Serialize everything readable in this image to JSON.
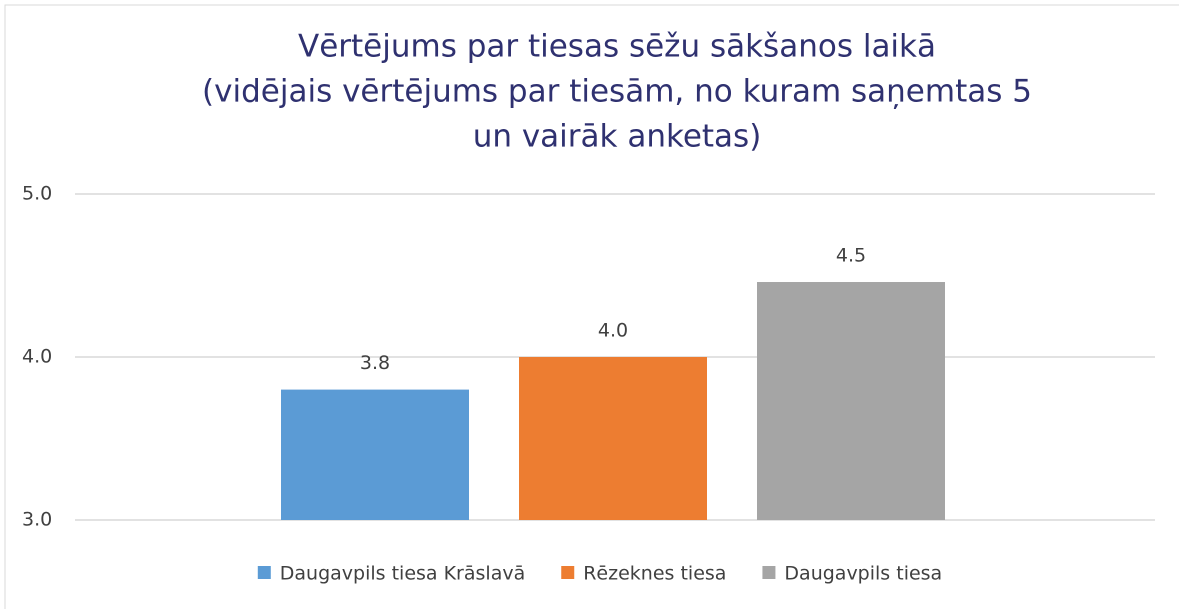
{
  "chart_data": {
    "type": "bar",
    "title": [
      "Vērtējums par tiesas sēžu sākšanos laikā",
      "(vidējais vērtējums par tiesām, no kuram saņemtas 5",
      "un vairāk anketas)"
    ],
    "categories": [
      null
    ],
    "series": [
      {
        "name": "Daugavpils tiesa Krāslavā",
        "color": "#5b9bd5",
        "values": [
          3.8
        ],
        "value_labels": [
          "3.8"
        ]
      },
      {
        "name": "Rēzeknes tiesa",
        "color": "#ed7d31",
        "values": [
          4.0
        ],
        "value_labels": [
          "4.0"
        ]
      },
      {
        "name": "Daugavpils tiesa",
        "color": "#a5a5a5",
        "values": [
          4.46
        ],
        "value_labels": [
          "4.5"
        ]
      }
    ],
    "ylim": [
      3,
      5
    ],
    "yticks": [
      {
        "value": 3,
        "label": "3.0"
      },
      {
        "value": 4,
        "label": "4.0"
      },
      {
        "value": 5,
        "label": "5.0"
      }
    ],
    "grid": true,
    "legend": "bottom"
  }
}
